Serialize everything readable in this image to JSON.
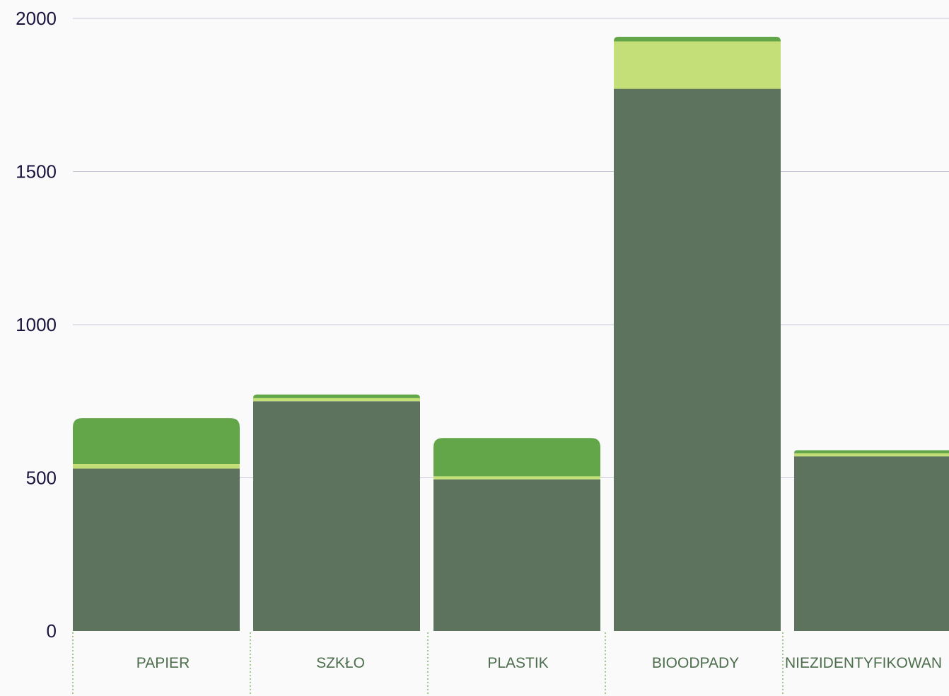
{
  "chart_data": {
    "type": "bar",
    "stacked": true,
    "title": "",
    "xlabel": "",
    "ylabel": "",
    "ylim": [
      0,
      2000
    ],
    "yticks": [
      "0",
      "500",
      "1000",
      "1500",
      "2000"
    ],
    "categories": [
      "PAPIER",
      "SZKŁO",
      "PLASTIK",
      "BIOODPADY",
      "NIEZIDENTYFIKOWAN"
    ],
    "series": [
      {
        "color": "#5e735e",
        "values": [
          530,
          750,
          495,
          1770,
          570
        ]
      },
      {
        "color": "#c5df78",
        "values": [
          15,
          10,
          10,
          155,
          10
        ]
      },
      {
        "color": "#63a64a",
        "values": [
          150,
          12,
          125,
          15,
          10
        ]
      }
    ],
    "grid": true,
    "legend": "none"
  },
  "colors": {
    "background": "#fafafa",
    "gridline": "#c8c8dc",
    "ytick_text": "#1a1440",
    "xtick_text": "#4d6e4d",
    "category_divider": "#63a64a"
  }
}
